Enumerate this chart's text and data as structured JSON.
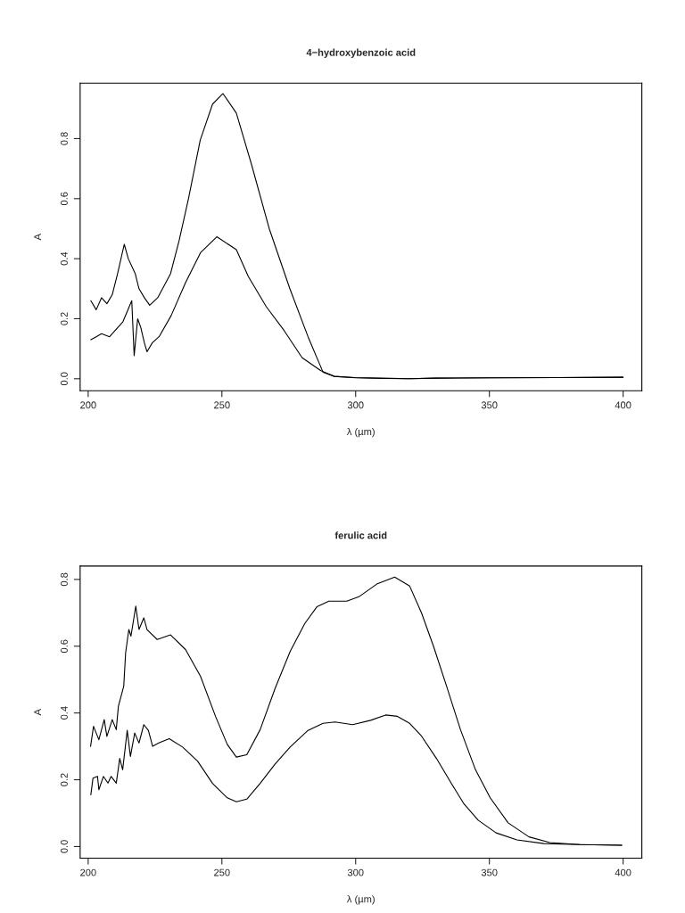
{
  "chart_data": [
    {
      "type": "line",
      "title": "4−hydroxybenzoic acid",
      "xlabel": "λ (µm)",
      "ylabel": "A",
      "xlim": [
        197,
        407
      ],
      "ylim": [
        -0.04,
        0.985
      ],
      "xticks": [
        200,
        250,
        300,
        350,
        400
      ],
      "yticks": [
        {
          "value": 0,
          "label": "0.0"
        },
        {
          "value": 0.2,
          "label": "0.2"
        },
        {
          "value": 0.4,
          "label": "0.4"
        },
        {
          "value": 0.6,
          "label": "0.6"
        },
        {
          "value": 0.8,
          "label": "0.8"
        }
      ],
      "grid": false,
      "marker": "none",
      "line_style": "solid",
      "series": [
        {
          "color": "#000000",
          "x": [
            201,
            203,
            205,
            207,
            209,
            211,
            213.5,
            215,
            217.6,
            219,
            221,
            223,
            226,
            230.8,
            234,
            237.5,
            241.9,
            246.5,
            250.4,
            255.4,
            261,
            267.7,
            275.4,
            282.2,
            287.8,
            292,
            300,
            310,
            320,
            330,
            350,
            375,
            400
          ],
          "values": [
            0.26,
            0.23,
            0.27,
            0.25,
            0.28,
            0.35,
            0.448,
            0.4,
            0.35,
            0.3,
            0.27,
            0.245,
            0.27,
            0.35,
            0.46,
            0.6,
            0.795,
            0.915,
            0.95,
            0.885,
            0.716,
            0.5,
            0.3,
            0.14,
            0.022,
            0.008,
            0.004,
            0.002,
            0.0,
            0.002,
            0.003,
            0.004,
            0.005
          ]
        },
        {
          "color": "#000000",
          "x": [
            201,
            203,
            205,
            208,
            210,
            213,
            216.3,
            217.2,
            218.5,
            219.7,
            221,
            222,
            224,
            226.5,
            231,
            236.4,
            242,
            248.1,
            255.4,
            259.9,
            266.6,
            273.3,
            280,
            287,
            292,
            300,
            310,
            320,
            330,
            350,
            375,
            400
          ],
          "values": [
            0.13,
            0.14,
            0.15,
            0.14,
            0.16,
            0.19,
            0.26,
            0.077,
            0.2,
            0.17,
            0.12,
            0.09,
            0.12,
            0.14,
            0.21,
            0.32,
            0.42,
            0.473,
            0.43,
            0.34,
            0.24,
            0.16,
            0.07,
            0.027,
            0.008,
            0.003,
            0.001,
            0.0,
            0.002,
            0.003,
            0.004,
            0.005
          ]
        }
      ]
    },
    {
      "type": "line",
      "title": "ferulic acid",
      "xlabel": "λ (µm)",
      "ylabel": "A",
      "xlim": [
        197,
        407
      ],
      "ylim": [
        -0.035,
        0.84
      ],
      "xticks": [
        200,
        250,
        300,
        350,
        400
      ],
      "yticks": [
        {
          "value": 0,
          "label": "0.0"
        },
        {
          "value": 0.2,
          "label": "0.2"
        },
        {
          "value": 0.4,
          "label": "0.4"
        },
        {
          "value": 0.6,
          "label": "0.6"
        },
        {
          "value": 0.8,
          "label": "0.8"
        }
      ],
      "grid": false,
      "marker": "none",
      "line_style": "solid",
      "series": [
        {
          "color": "#000000",
          "x": [
            200.9,
            202,
            204,
            206,
            207,
            209,
            210.5,
            211.3,
            213.3,
            214,
            215.2,
            216,
            217.8,
            219,
            220.8,
            222,
            225.8,
            230.8,
            236.4,
            242,
            247.6,
            252,
            255.4,
            259.3,
            264.3,
            269.9,
            275.5,
            281,
            285.5,
            290,
            296.7,
            301.2,
            307.9,
            314.6,
            320.2,
            324.6,
            329.1,
            333.6,
            339.2,
            344.8,
            350.3,
            357,
            364.8,
            372.6,
            383.8,
            399.5
          ],
          "values": [
            0.3,
            0.36,
            0.32,
            0.38,
            0.33,
            0.38,
            0.35,
            0.42,
            0.48,
            0.58,
            0.65,
            0.63,
            0.72,
            0.65,
            0.685,
            0.65,
            0.62,
            0.634,
            0.59,
            0.51,
            0.39,
            0.306,
            0.268,
            0.275,
            0.35,
            0.474,
            0.584,
            0.668,
            0.718,
            0.735,
            0.735,
            0.748,
            0.786,
            0.807,
            0.78,
            0.7,
            0.6,
            0.49,
            0.35,
            0.23,
            0.146,
            0.071,
            0.029,
            0.012,
            0.006,
            0.004
          ]
        },
        {
          "color": "#000000",
          "x": [
            201,
            201.8,
            203.5,
            204,
            205.7,
            207.4,
            208.6,
            210.5,
            211.8,
            212.9,
            214.6,
            215.8,
            217.4,
            219,
            220.8,
            222.5,
            224.1,
            226.4,
            230.3,
            235.3,
            240.9,
            246.5,
            252,
            255.4,
            259.3,
            264.3,
            269.9,
            275.5,
            282.2,
            287.8,
            292.3,
            298.9,
            305.6,
            311.2,
            315.6,
            320.2,
            324.6,
            330.2,
            335.8,
            340.3,
            345.8,
            352.5,
            360.3,
            370.4,
            383.8,
            399.5
          ],
          "values": [
            0.155,
            0.205,
            0.21,
            0.17,
            0.21,
            0.19,
            0.21,
            0.19,
            0.264,
            0.23,
            0.348,
            0.27,
            0.34,
            0.31,
            0.365,
            0.348,
            0.3,
            0.31,
            0.323,
            0.298,
            0.256,
            0.189,
            0.146,
            0.134,
            0.142,
            0.189,
            0.247,
            0.298,
            0.348,
            0.369,
            0.373,
            0.365,
            0.378,
            0.394,
            0.39,
            0.369,
            0.331,
            0.264,
            0.189,
            0.13,
            0.079,
            0.041,
            0.02,
            0.009,
            0.006,
            0.004
          ]
        }
      ]
    }
  ]
}
